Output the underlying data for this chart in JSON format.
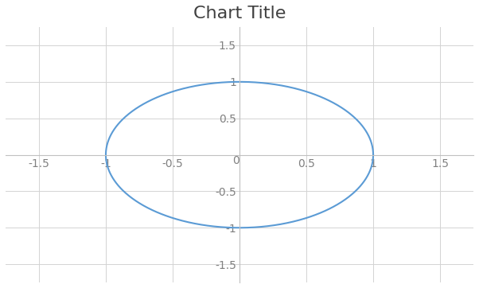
{
  "title": "Chart Title",
  "title_fontsize": 16,
  "title_color": "#404040",
  "title_fontfamily": "Calibri",
  "xlim": [
    -1.75,
    1.75
  ],
  "ylim": [
    -1.75,
    1.75
  ],
  "xticks": [
    -1.5,
    -1.0,
    -0.5,
    0.5,
    1.0,
    1.5
  ],
  "yticks": [
    -1.5,
    -1.0,
    -0.5,
    0.5,
    1.0,
    1.5
  ],
  "x0tick": 0.0,
  "y0tick": 0.0,
  "tick_fontsize": 10,
  "tick_color": "#808080",
  "ellipse_a": 1.0,
  "ellipse_b": 1.0,
  "line_color": "#5B9BD5",
  "line_width": 1.5,
  "background_color": "#ffffff",
  "grid_color": "#d3d3d3",
  "grid_linewidth": 0.7,
  "spine_color": "#c0c0c0",
  "figsize": [
    6.02,
    3.62
  ],
  "dpi": 100
}
